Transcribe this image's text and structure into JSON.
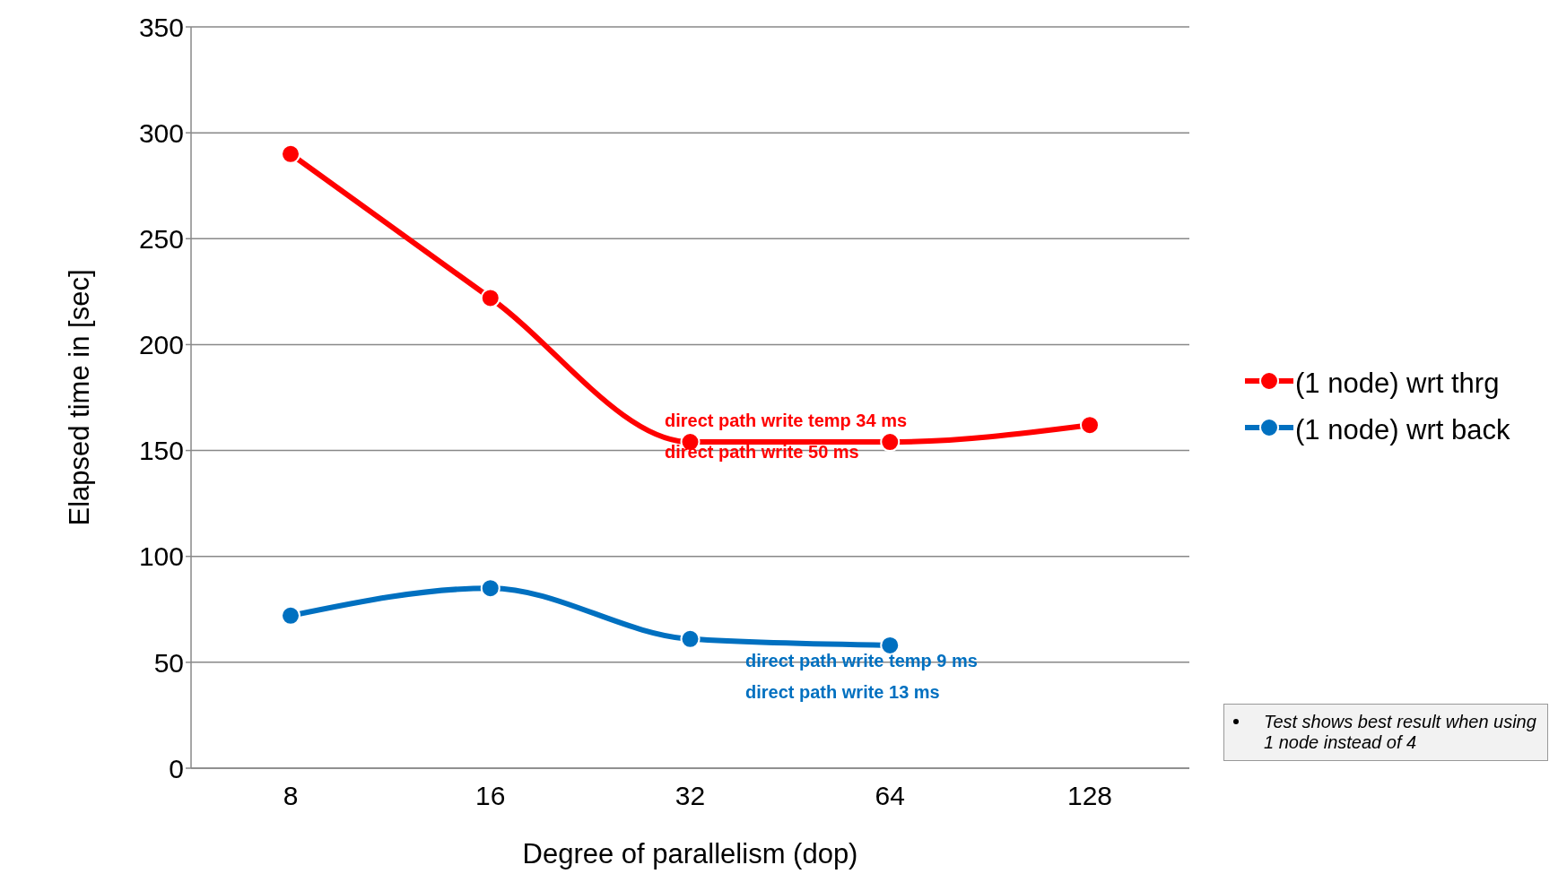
{
  "chart_data": {
    "type": "line",
    "xlabel": "Degree of parallelism (dop)",
    "ylabel": "Elapsed time in [sec]",
    "categories": [
      "8",
      "16",
      "32",
      "64",
      "128"
    ],
    "series": [
      {
        "name": "(1 node) wrt thrg",
        "color": "#ff0000",
        "values": [
          290,
          222,
          154,
          154,
          162
        ]
      },
      {
        "name": "(1 node) wrt back",
        "color": "#0070c0",
        "values": [
          72,
          85,
          61,
          58,
          null
        ]
      }
    ],
    "ylim": [
      0,
      350
    ],
    "yticks": [
      0,
      50,
      100,
      150,
      200,
      250,
      300,
      350
    ],
    "grid": "y",
    "legend": "right",
    "marker": "circle",
    "line_style": "solid",
    "annotations": [
      "direct path write temp 34 ms",
      "direct path write 50 ms",
      "direct path write temp 9 ms",
      "direct path write 13 ms",
      "Test shows best result when using 1 node instead of 4"
    ]
  }
}
